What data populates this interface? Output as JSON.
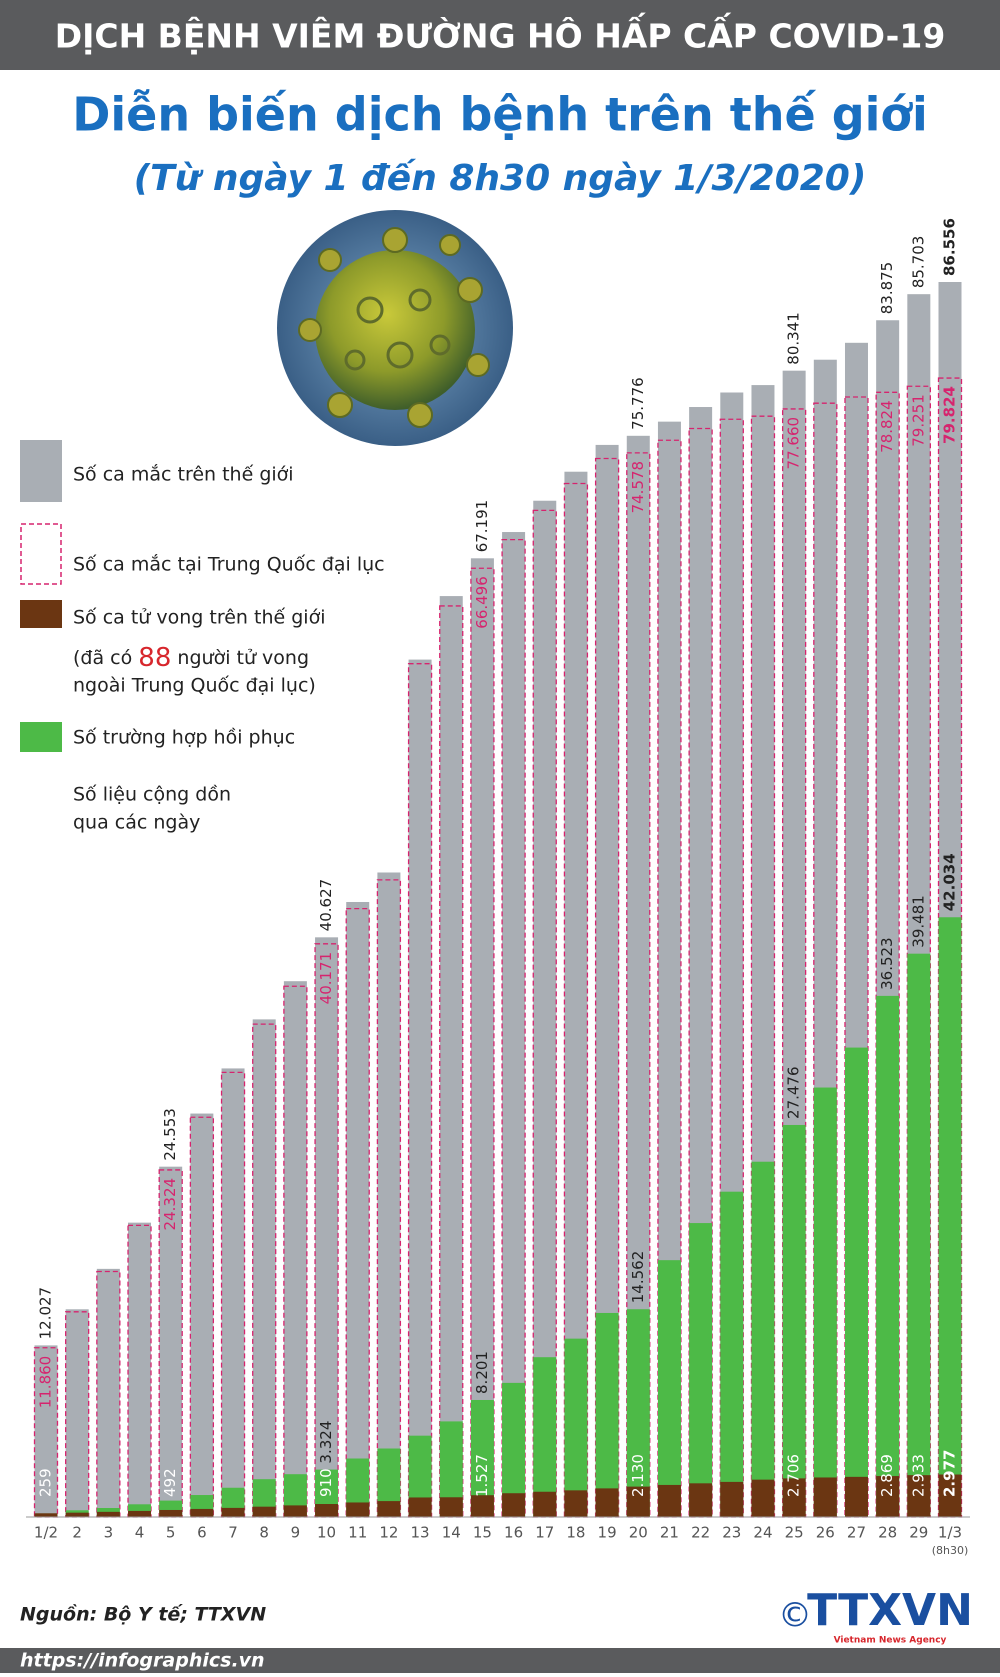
{
  "header": "DỊCH BỆNH VIÊM ĐƯỜNG HÔ HẤP CẤP COVID-19",
  "chart_data": {
    "type": "bar",
    "title": "Diễn biến dịch bệnh trên thế giới",
    "subtitle": "(Từ ngày 1 đến 8h30 ngày 1/3/2020)",
    "categories": [
      "1/2",
      "2",
      "3",
      "4",
      "5",
      "6",
      "7",
      "8",
      "9",
      "10",
      "11",
      "12",
      "13",
      "14",
      "15",
      "16",
      "17",
      "18",
      "19",
      "20",
      "21",
      "22",
      "23",
      "24",
      "25",
      "26",
      "27",
      "28",
      "29",
      "1/3"
    ],
    "x_note": "(8h30)",
    "series": [
      {
        "name": "Số ca mắc trên thế giới",
        "color": "#a9aeb4",
        "values": [
          12027,
          14557,
          17391,
          20630,
          24553,
          28276,
          31439,
          34876,
          37552,
          40627,
          43103,
          45171,
          60092,
          64543,
          67191,
          69032,
          71226,
          73260,
          75138,
          75776,
          76769,
          77794,
          78811,
          79331,
          80341,
          81109,
          82294,
          83875,
          85703,
          86556
        ],
        "value_labels": [
          "12.027",
          null,
          null,
          null,
          "24.553",
          null,
          null,
          null,
          null,
          "40.627",
          null,
          null,
          null,
          null,
          "67.191",
          null,
          null,
          null,
          null,
          "75.776",
          null,
          null,
          null,
          null,
          "80.341",
          null,
          null,
          "83.875",
          "85.703",
          "86.556"
        ]
      },
      {
        "name": "Số ca mắc tại Trung Quốc đại lục",
        "color": "#d6246e",
        "values": [
          11860,
          14380,
          17205,
          20438,
          24324,
          28018,
          31161,
          34546,
          37198,
          40171,
          42638,
          44653,
          59804,
          63851,
          66496,
          68500,
          70548,
          72436,
          74185,
          74578,
          75465,
          76288,
          76936,
          77150,
          77660,
          78064,
          78497,
          78824,
          79251,
          79824
        ],
        "value_labels": [
          "11.860",
          null,
          null,
          null,
          "24.324",
          null,
          null,
          null,
          null,
          "40.171",
          null,
          null,
          null,
          null,
          "66.496",
          null,
          null,
          null,
          null,
          "74.578",
          null,
          null,
          null,
          null,
          "77.660",
          null,
          null,
          "78.824",
          "79.251",
          "79.824"
        ]
      },
      {
        "name": "Số ca tử vong trên thế giới",
        "color": "#6b3612",
        "values": [
          259,
          304,
          361,
          425,
          492,
          565,
          638,
          724,
          813,
          910,
          1018,
          1115,
          1369,
          1383,
          1527,
          1666,
          1770,
          1868,
          2006,
          2130,
          2247,
          2360,
          2460,
          2618,
          2706,
          2770,
          2814,
          2869,
          2933,
          2977
        ],
        "value_labels": [
          "259",
          null,
          null,
          null,
          "492",
          null,
          null,
          null,
          null,
          "910",
          null,
          null,
          null,
          null,
          "1.527",
          null,
          null,
          null,
          null,
          "2.130",
          null,
          null,
          null,
          null,
          "2.706",
          null,
          null,
          "2.869",
          "2.933",
          "2.977"
        ]
      },
      {
        "name": "Số trường hợp hồi phục",
        "color": "#4dba47",
        "values": [
          250,
          470,
          630,
          890,
          1150,
          1540,
          2050,
          2650,
          3000,
          3324,
          4100,
          4800,
          5700,
          6700,
          8201,
          9400,
          11200,
          12500,
          14300,
          14562,
          18000,
          20600,
          22800,
          24900,
          27476,
          30100,
          32900,
          36523,
          39481,
          42034
        ],
        "value_labels": [
          null,
          null,
          null,
          null,
          null,
          null,
          null,
          null,
          null,
          "3.324",
          null,
          null,
          null,
          null,
          "8.201",
          null,
          null,
          null,
          null,
          "14.562",
          null,
          null,
          null,
          null,
          "27.476",
          null,
          null,
          "36.523",
          "39.481",
          "42.034"
        ]
      }
    ],
    "death_note": {
      "before": "(đã có",
      "number": 88,
      "after": "người tử vong",
      "line2": "ngoài Trung Quốc đại lục)"
    },
    "cumulative_note": [
      "Số liệu cộng dồn",
      "qua các ngày"
    ]
  },
  "footer": {
    "source": "Nguồn: Bộ Y tế; TTXVN",
    "url": "https://infographics.vn",
    "copyright": "©",
    "logo": "TTXVN",
    "logo_sub": "Vietnam News Agency"
  }
}
